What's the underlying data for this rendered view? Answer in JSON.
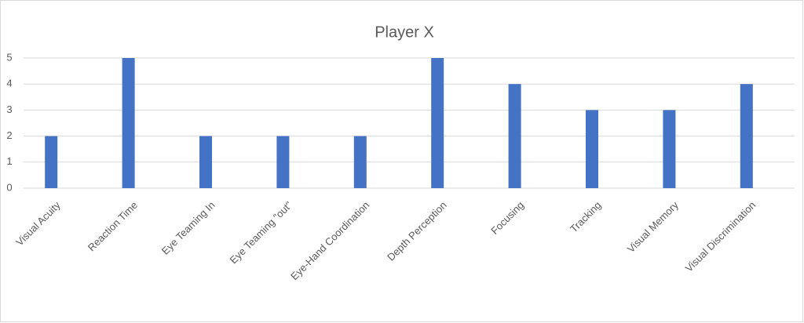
{
  "chart_data": {
    "type": "bar",
    "title": "Player X",
    "categories": [
      "Visual Acuity",
      "Reaction Time",
      "Eye Teaming In",
      "Eye Teaming \"out\"",
      "Eye-Hand Coordination",
      "Depth Perception",
      "Focusing",
      "Tracking",
      "Visual Memory",
      "Visual Discrimination"
    ],
    "values": [
      2,
      5,
      2,
      2,
      2,
      5,
      4,
      3,
      3,
      4
    ],
    "color": "#4472c4",
    "ylim": [
      0,
      5
    ],
    "yticks": [
      0,
      1,
      2,
      3,
      4,
      5
    ],
    "grid": true
  }
}
